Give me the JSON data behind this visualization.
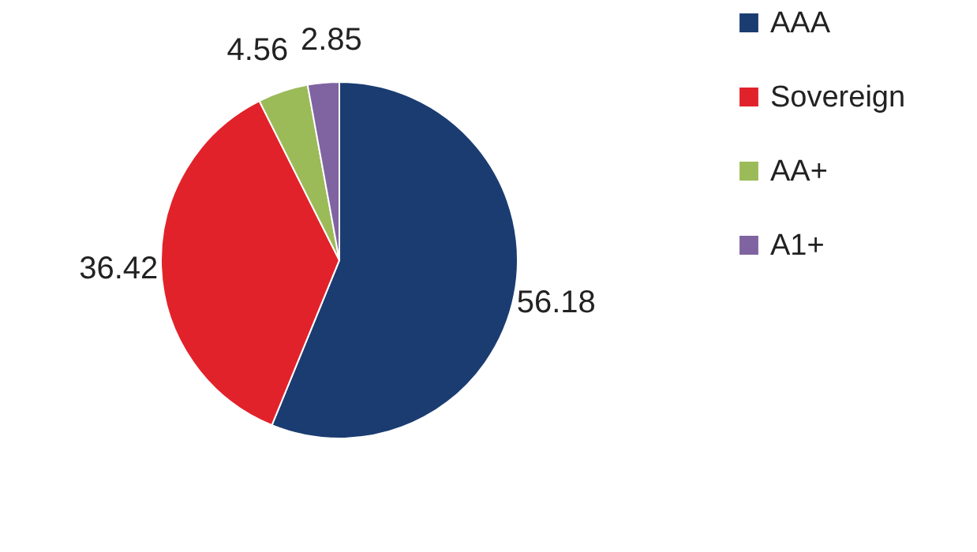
{
  "chart_data": {
    "type": "pie",
    "categories": [
      "AAA",
      "Sovereign",
      "AA+",
      "A1+"
    ],
    "values": [
      56.18,
      36.42,
      4.56,
      2.85
    ],
    "colors": [
      "#1b3c71",
      "#e2222a",
      "#9bbb59",
      "#8063a1"
    ],
    "data_labels": true,
    "legend": "right"
  }
}
